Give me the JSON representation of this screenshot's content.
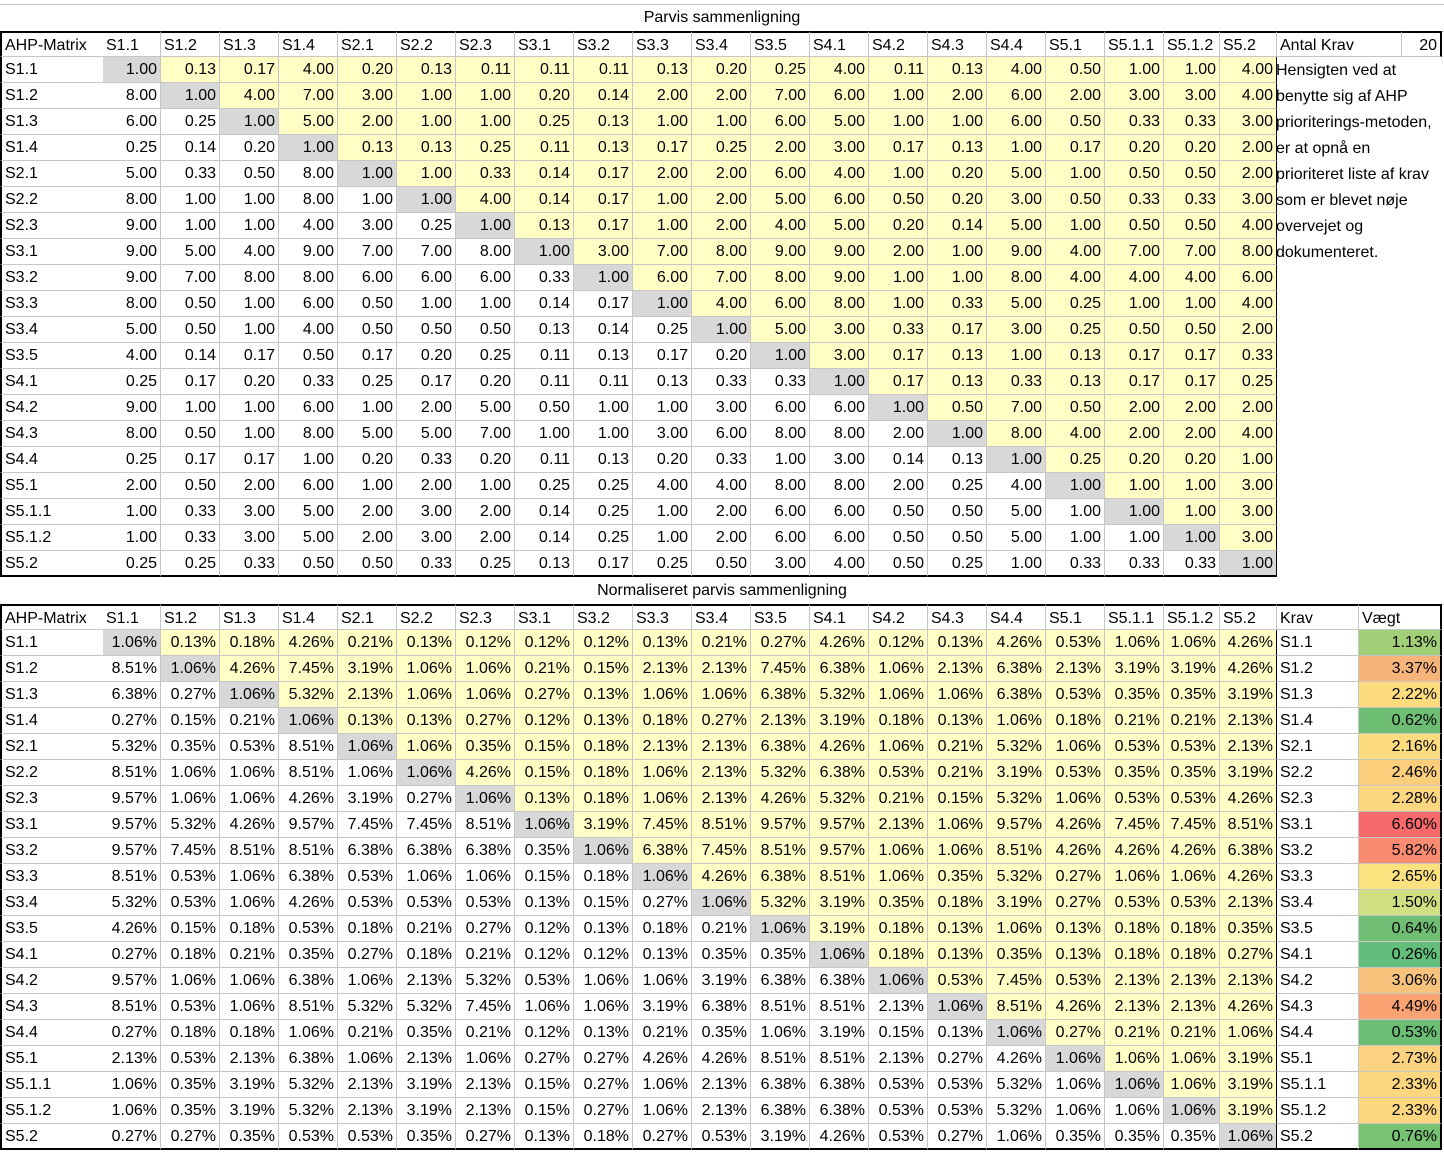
{
  "top_title": "Parvis sammenligning",
  "bottom_title": "Normaliseret parvis sammenligning",
  "corner": "AHP-Matrix",
  "antal_label": "Antal Krav",
  "antal_value": "20",
  "krav_header": "Krav",
  "vaegt_header": "Vægt",
  "note": "Hensigten ved at benytte sig af AHP prioriterings-metoden, er at opnå en prioriteret liste af krav som er blevet nøje overvejet og dokumenteret.",
  "labels": [
    "S1.1",
    "S1.2",
    "S1.3",
    "S1.4",
    "S2.1",
    "S2.2",
    "S2.3",
    "S3.1",
    "S3.2",
    "S3.3",
    "S3.4",
    "S3.5",
    "S4.1",
    "S4.2",
    "S4.3",
    "S4.4",
    "S5.1",
    "S5.1.1",
    "S5.1.2",
    "S5.2"
  ],
  "matrix": [
    [
      "1.00",
      "0.13",
      "0.17",
      "4.00",
      "0.20",
      "0.13",
      "0.11",
      "0.11",
      "0.11",
      "0.13",
      "0.20",
      "0.25",
      "4.00",
      "0.11",
      "0.13",
      "4.00",
      "0.50",
      "1.00",
      "1.00",
      "4.00"
    ],
    [
      "8.00",
      "1.00",
      "4.00",
      "7.00",
      "3.00",
      "1.00",
      "1.00",
      "0.20",
      "0.14",
      "2.00",
      "2.00",
      "7.00",
      "6.00",
      "1.00",
      "2.00",
      "6.00",
      "2.00",
      "3.00",
      "3.00",
      "4.00"
    ],
    [
      "6.00",
      "0.25",
      "1.00",
      "5.00",
      "2.00",
      "1.00",
      "1.00",
      "0.25",
      "0.13",
      "1.00",
      "1.00",
      "6.00",
      "5.00",
      "1.00",
      "1.00",
      "6.00",
      "0.50",
      "0.33",
      "0.33",
      "3.00"
    ],
    [
      "0.25",
      "0.14",
      "0.20",
      "1.00",
      "0.13",
      "0.13",
      "0.25",
      "0.11",
      "0.13",
      "0.17",
      "0.25",
      "2.00",
      "3.00",
      "0.17",
      "0.13",
      "1.00",
      "0.17",
      "0.20",
      "0.20",
      "2.00"
    ],
    [
      "5.00",
      "0.33",
      "0.50",
      "8.00",
      "1.00",
      "1.00",
      "0.33",
      "0.14",
      "0.17",
      "2.00",
      "2.00",
      "6.00",
      "4.00",
      "1.00",
      "0.20",
      "5.00",
      "1.00",
      "0.50",
      "0.50",
      "2.00"
    ],
    [
      "8.00",
      "1.00",
      "1.00",
      "8.00",
      "1.00",
      "1.00",
      "4.00",
      "0.14",
      "0.17",
      "1.00",
      "2.00",
      "5.00",
      "6.00",
      "0.50",
      "0.20",
      "3.00",
      "0.50",
      "0.33",
      "0.33",
      "3.00"
    ],
    [
      "9.00",
      "1.00",
      "1.00",
      "4.00",
      "3.00",
      "0.25",
      "1.00",
      "0.13",
      "0.17",
      "1.00",
      "2.00",
      "4.00",
      "5.00",
      "0.20",
      "0.14",
      "5.00",
      "1.00",
      "0.50",
      "0.50",
      "4.00"
    ],
    [
      "9.00",
      "5.00",
      "4.00",
      "9.00",
      "7.00",
      "7.00",
      "8.00",
      "1.00",
      "3.00",
      "7.00",
      "8.00",
      "9.00",
      "9.00",
      "2.00",
      "1.00",
      "9.00",
      "4.00",
      "7.00",
      "7.00",
      "8.00"
    ],
    [
      "9.00",
      "7.00",
      "8.00",
      "8.00",
      "6.00",
      "6.00",
      "6.00",
      "0.33",
      "1.00",
      "6.00",
      "7.00",
      "8.00",
      "9.00",
      "1.00",
      "1.00",
      "8.00",
      "4.00",
      "4.00",
      "4.00",
      "6.00"
    ],
    [
      "8.00",
      "0.50",
      "1.00",
      "6.00",
      "0.50",
      "1.00",
      "1.00",
      "0.14",
      "0.17",
      "1.00",
      "4.00",
      "6.00",
      "8.00",
      "1.00",
      "0.33",
      "5.00",
      "0.25",
      "1.00",
      "1.00",
      "4.00"
    ],
    [
      "5.00",
      "0.50",
      "1.00",
      "4.00",
      "0.50",
      "0.50",
      "0.50",
      "0.13",
      "0.14",
      "0.25",
      "1.00",
      "5.00",
      "3.00",
      "0.33",
      "0.17",
      "3.00",
      "0.25",
      "0.50",
      "0.50",
      "2.00"
    ],
    [
      "4.00",
      "0.14",
      "0.17",
      "0.50",
      "0.17",
      "0.20",
      "0.25",
      "0.11",
      "0.13",
      "0.17",
      "0.20",
      "1.00",
      "3.00",
      "0.17",
      "0.13",
      "1.00",
      "0.13",
      "0.17",
      "0.17",
      "0.33"
    ],
    [
      "0.25",
      "0.17",
      "0.20",
      "0.33",
      "0.25",
      "0.17",
      "0.20",
      "0.11",
      "0.11",
      "0.13",
      "0.33",
      "0.33",
      "1.00",
      "0.17",
      "0.13",
      "0.33",
      "0.13",
      "0.17",
      "0.17",
      "0.25"
    ],
    [
      "9.00",
      "1.00",
      "1.00",
      "6.00",
      "1.00",
      "2.00",
      "5.00",
      "0.50",
      "1.00",
      "1.00",
      "3.00",
      "6.00",
      "6.00",
      "1.00",
      "0.50",
      "7.00",
      "0.50",
      "2.00",
      "2.00",
      "2.00"
    ],
    [
      "8.00",
      "0.50",
      "1.00",
      "8.00",
      "5.00",
      "5.00",
      "7.00",
      "1.00",
      "1.00",
      "3.00",
      "6.00",
      "8.00",
      "8.00",
      "2.00",
      "1.00",
      "8.00",
      "4.00",
      "2.00",
      "2.00",
      "4.00"
    ],
    [
      "0.25",
      "0.17",
      "0.17",
      "1.00",
      "0.20",
      "0.33",
      "0.20",
      "0.11",
      "0.13",
      "0.20",
      "0.33",
      "1.00",
      "3.00",
      "0.14",
      "0.13",
      "1.00",
      "0.25",
      "0.20",
      "0.20",
      "1.00"
    ],
    [
      "2.00",
      "0.50",
      "2.00",
      "6.00",
      "1.00",
      "2.00",
      "1.00",
      "0.25",
      "0.25",
      "4.00",
      "4.00",
      "8.00",
      "8.00",
      "2.00",
      "0.25",
      "4.00",
      "1.00",
      "1.00",
      "1.00",
      "3.00"
    ],
    [
      "1.00",
      "0.33",
      "3.00",
      "5.00",
      "2.00",
      "3.00",
      "2.00",
      "0.14",
      "0.25",
      "1.00",
      "2.00",
      "6.00",
      "6.00",
      "0.50",
      "0.50",
      "5.00",
      "1.00",
      "1.00",
      "1.00",
      "3.00"
    ],
    [
      "1.00",
      "0.33",
      "3.00",
      "5.00",
      "2.00",
      "3.00",
      "2.00",
      "0.14",
      "0.25",
      "1.00",
      "2.00",
      "6.00",
      "6.00",
      "0.50",
      "0.50",
      "5.00",
      "1.00",
      "1.00",
      "1.00",
      "3.00"
    ],
    [
      "0.25",
      "0.25",
      "0.33",
      "0.50",
      "0.50",
      "0.33",
      "0.25",
      "0.13",
      "0.17",
      "0.25",
      "0.50",
      "3.00",
      "4.00",
      "0.50",
      "0.25",
      "1.00",
      "0.33",
      "0.33",
      "0.33",
      "1.00"
    ]
  ],
  "normalized": [
    [
      "1.06%",
      "0.13%",
      "0.18%",
      "4.26%",
      "0.21%",
      "0.13%",
      "0.12%",
      "0.12%",
      "0.12%",
      "0.13%",
      "0.21%",
      "0.27%",
      "4.26%",
      "0.12%",
      "0.13%",
      "4.26%",
      "0.53%",
      "1.06%",
      "1.06%",
      "4.26%"
    ],
    [
      "8.51%",
      "1.06%",
      "4.26%",
      "7.45%",
      "3.19%",
      "1.06%",
      "1.06%",
      "0.21%",
      "0.15%",
      "2.13%",
      "2.13%",
      "7.45%",
      "6.38%",
      "1.06%",
      "2.13%",
      "6.38%",
      "2.13%",
      "3.19%",
      "3.19%",
      "4.26%"
    ],
    [
      "6.38%",
      "0.27%",
      "1.06%",
      "5.32%",
      "2.13%",
      "1.06%",
      "1.06%",
      "0.27%",
      "0.13%",
      "1.06%",
      "1.06%",
      "6.38%",
      "5.32%",
      "1.06%",
      "1.06%",
      "6.38%",
      "0.53%",
      "0.35%",
      "0.35%",
      "3.19%"
    ],
    [
      "0.27%",
      "0.15%",
      "0.21%",
      "1.06%",
      "0.13%",
      "0.13%",
      "0.27%",
      "0.12%",
      "0.13%",
      "0.18%",
      "0.27%",
      "2.13%",
      "3.19%",
      "0.18%",
      "0.13%",
      "1.06%",
      "0.18%",
      "0.21%",
      "0.21%",
      "2.13%"
    ],
    [
      "5.32%",
      "0.35%",
      "0.53%",
      "8.51%",
      "1.06%",
      "1.06%",
      "0.35%",
      "0.15%",
      "0.18%",
      "2.13%",
      "2.13%",
      "6.38%",
      "4.26%",
      "1.06%",
      "0.21%",
      "5.32%",
      "1.06%",
      "0.53%",
      "0.53%",
      "2.13%"
    ],
    [
      "8.51%",
      "1.06%",
      "1.06%",
      "8.51%",
      "1.06%",
      "1.06%",
      "4.26%",
      "0.15%",
      "0.18%",
      "1.06%",
      "2.13%",
      "5.32%",
      "6.38%",
      "0.53%",
      "0.21%",
      "3.19%",
      "0.53%",
      "0.35%",
      "0.35%",
      "3.19%"
    ],
    [
      "9.57%",
      "1.06%",
      "1.06%",
      "4.26%",
      "3.19%",
      "0.27%",
      "1.06%",
      "0.13%",
      "0.18%",
      "1.06%",
      "2.13%",
      "4.26%",
      "5.32%",
      "0.21%",
      "0.15%",
      "5.32%",
      "1.06%",
      "0.53%",
      "0.53%",
      "4.26%"
    ],
    [
      "9.57%",
      "5.32%",
      "4.26%",
      "9.57%",
      "7.45%",
      "7.45%",
      "8.51%",
      "1.06%",
      "3.19%",
      "7.45%",
      "8.51%",
      "9.57%",
      "9.57%",
      "2.13%",
      "1.06%",
      "9.57%",
      "4.26%",
      "7.45%",
      "7.45%",
      "8.51%"
    ],
    [
      "9.57%",
      "7.45%",
      "8.51%",
      "8.51%",
      "6.38%",
      "6.38%",
      "6.38%",
      "0.35%",
      "1.06%",
      "6.38%",
      "7.45%",
      "8.51%",
      "9.57%",
      "1.06%",
      "1.06%",
      "8.51%",
      "4.26%",
      "4.26%",
      "4.26%",
      "6.38%"
    ],
    [
      "8.51%",
      "0.53%",
      "1.06%",
      "6.38%",
      "0.53%",
      "1.06%",
      "1.06%",
      "0.15%",
      "0.18%",
      "1.06%",
      "4.26%",
      "6.38%",
      "8.51%",
      "1.06%",
      "0.35%",
      "5.32%",
      "0.27%",
      "1.06%",
      "1.06%",
      "4.26%"
    ],
    [
      "5.32%",
      "0.53%",
      "1.06%",
      "4.26%",
      "0.53%",
      "0.53%",
      "0.53%",
      "0.13%",
      "0.15%",
      "0.27%",
      "1.06%",
      "5.32%",
      "3.19%",
      "0.35%",
      "0.18%",
      "3.19%",
      "0.27%",
      "0.53%",
      "0.53%",
      "2.13%"
    ],
    [
      "4.26%",
      "0.15%",
      "0.18%",
      "0.53%",
      "0.18%",
      "0.21%",
      "0.27%",
      "0.12%",
      "0.13%",
      "0.18%",
      "0.21%",
      "1.06%",
      "3.19%",
      "0.18%",
      "0.13%",
      "1.06%",
      "0.13%",
      "0.18%",
      "0.18%",
      "0.35%"
    ],
    [
      "0.27%",
      "0.18%",
      "0.21%",
      "0.35%",
      "0.27%",
      "0.18%",
      "0.21%",
      "0.12%",
      "0.12%",
      "0.13%",
      "0.35%",
      "0.35%",
      "1.06%",
      "0.18%",
      "0.13%",
      "0.35%",
      "0.13%",
      "0.18%",
      "0.18%",
      "0.27%"
    ],
    [
      "9.57%",
      "1.06%",
      "1.06%",
      "6.38%",
      "1.06%",
      "2.13%",
      "5.32%",
      "0.53%",
      "1.06%",
      "1.06%",
      "3.19%",
      "6.38%",
      "6.38%",
      "1.06%",
      "0.53%",
      "7.45%",
      "0.53%",
      "2.13%",
      "2.13%",
      "2.13%"
    ],
    [
      "8.51%",
      "0.53%",
      "1.06%",
      "8.51%",
      "5.32%",
      "5.32%",
      "7.45%",
      "1.06%",
      "1.06%",
      "3.19%",
      "6.38%",
      "8.51%",
      "8.51%",
      "2.13%",
      "1.06%",
      "8.51%",
      "4.26%",
      "2.13%",
      "2.13%",
      "4.26%"
    ],
    [
      "0.27%",
      "0.18%",
      "0.18%",
      "1.06%",
      "0.21%",
      "0.35%",
      "0.21%",
      "0.12%",
      "0.13%",
      "0.21%",
      "0.35%",
      "1.06%",
      "3.19%",
      "0.15%",
      "0.13%",
      "1.06%",
      "0.27%",
      "0.21%",
      "0.21%",
      "1.06%"
    ],
    [
      "2.13%",
      "0.53%",
      "2.13%",
      "6.38%",
      "1.06%",
      "2.13%",
      "1.06%",
      "0.27%",
      "0.27%",
      "4.26%",
      "4.26%",
      "8.51%",
      "8.51%",
      "2.13%",
      "0.27%",
      "4.26%",
      "1.06%",
      "1.06%",
      "1.06%",
      "3.19%"
    ],
    [
      "1.06%",
      "0.35%",
      "3.19%",
      "5.32%",
      "2.13%",
      "3.19%",
      "2.13%",
      "0.15%",
      "0.27%",
      "1.06%",
      "2.13%",
      "6.38%",
      "6.38%",
      "0.53%",
      "0.53%",
      "5.32%",
      "1.06%",
      "1.06%",
      "1.06%",
      "3.19%"
    ],
    [
      "1.06%",
      "0.35%",
      "3.19%",
      "5.32%",
      "2.13%",
      "3.19%",
      "2.13%",
      "0.15%",
      "0.27%",
      "1.06%",
      "2.13%",
      "6.38%",
      "6.38%",
      "0.53%",
      "0.53%",
      "5.32%",
      "1.06%",
      "1.06%",
      "1.06%",
      "3.19%"
    ],
    [
      "0.27%",
      "0.27%",
      "0.35%",
      "0.53%",
      "0.53%",
      "0.35%",
      "0.27%",
      "0.13%",
      "0.18%",
      "0.27%",
      "0.53%",
      "3.19%",
      "4.26%",
      "0.53%",
      "0.27%",
      "1.06%",
      "0.35%",
      "0.35%",
      "0.35%",
      "1.06%"
    ]
  ],
  "weights": [
    "1.13%",
    "3.37%",
    "2.22%",
    "0.62%",
    "2.16%",
    "2.46%",
    "2.28%",
    "6.60%",
    "5.82%",
    "2.65%",
    "1.50%",
    "0.64%",
    "0.26%",
    "3.06%",
    "4.49%",
    "0.53%",
    "2.73%",
    "2.33%",
    "2.33%",
    "0.76%"
  ],
  "weight_colors": [
    "#a0cf77",
    "#f6b47b",
    "#fddc80",
    "#6dbd73",
    "#fddc80",
    "#fbce7c",
    "#fdd680",
    "#f8696b",
    "#f98c70",
    "#fce27f",
    "#cfe082",
    "#6fbe73",
    "#63be7b",
    "#f7c27c",
    "#f9a372",
    "#6abd72",
    "#fcd380",
    "#fdd77f",
    "#fdd77f",
    "#77c273"
  ]
}
